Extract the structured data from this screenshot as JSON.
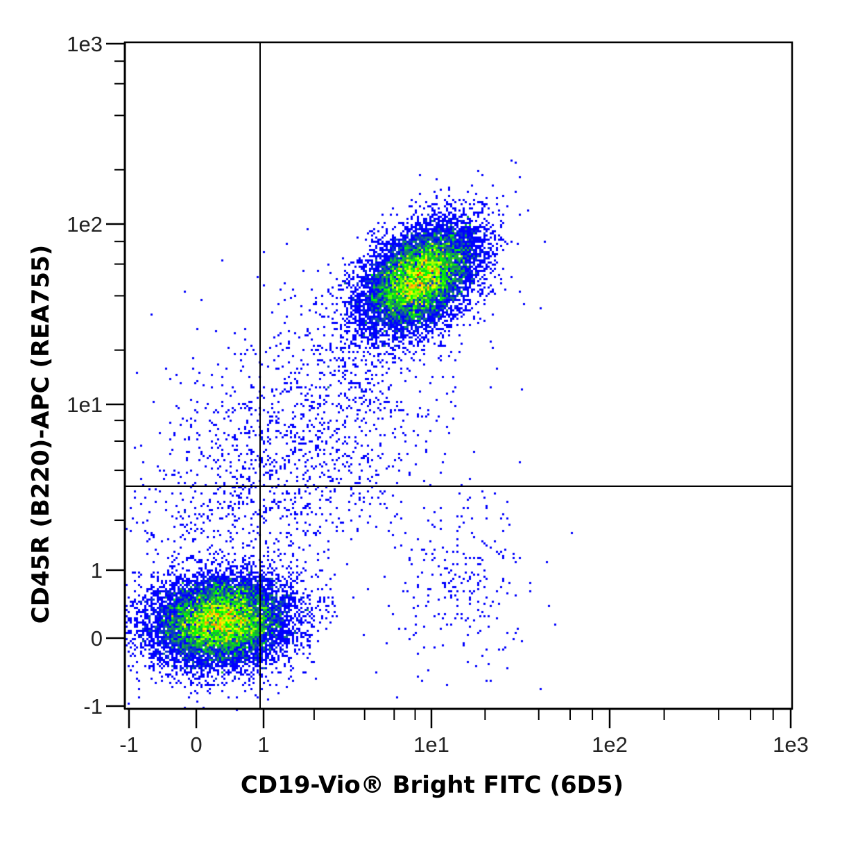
{
  "chart_data": {
    "type": "scatter",
    "subtype": "flow-cytometry-density-dotplot",
    "xlabel": "CD19-Vio® Bright FITC (6D5)",
    "ylabel": "CD45R (B220)-APC (REA755)",
    "xscale": "hyperlog (linear -1..1, log 1..1e3)",
    "yscale": "hyperlog (linear -1..1, log 1..1e3)",
    "xlim": [
      -1,
      1000
    ],
    "ylim": [
      -1,
      1000
    ],
    "x_ticks": [
      {
        "value": -1,
        "label": "-1"
      },
      {
        "value": 0,
        "label": "0"
      },
      {
        "value": 1,
        "label": "1"
      },
      {
        "value": 10,
        "label": "1e1"
      },
      {
        "value": 100,
        "label": "1e2"
      },
      {
        "value": 1000,
        "label": "1e3"
      }
    ],
    "y_ticks": [
      {
        "value": -1,
        "label": "-1"
      },
      {
        "value": 0,
        "label": "0"
      },
      {
        "value": 1,
        "label": "1"
      },
      {
        "value": 10,
        "label": "1e1"
      },
      {
        "value": 100,
        "label": "1e2"
      },
      {
        "value": 1000,
        "label": "1e3"
      }
    ],
    "minor_ticks": [
      2,
      4,
      6,
      8
    ],
    "quadrant_gate": {
      "x": 0.95,
      "y": 3.2
    },
    "populations": [
      {
        "name": "CD19- B220-",
        "center": [
          0.38,
          0.25
        ],
        "spread_decades": [
          0.2,
          0.13
        ],
        "correlation": 0.1,
        "events": 11000
      },
      {
        "name": "CD19+ B220+",
        "center": [
          8.5,
          50
        ],
        "spread_decades": [
          0.17,
          0.16
        ],
        "correlation": 0.45,
        "events": 10000
      },
      {
        "name": "B220 intermediate scatter",
        "center": [
          1.5,
          6
        ],
        "spread_decades": [
          0.45,
          0.45
        ],
        "correlation": 0.5,
        "events": 1600
      },
      {
        "name": "CD19+ B220- scatter",
        "center": [
          14,
          0.8
        ],
        "spread_decades": [
          0.2,
          0.25
        ],
        "correlation": 0,
        "events": 250
      }
    ],
    "colormap": [
      "#0000ff",
      "#0a3cc8",
      "#1e9650",
      "#00ff00",
      "#ffff00",
      "#ff8000",
      "#ff0000"
    ],
    "grid": false,
    "legend": "none"
  }
}
